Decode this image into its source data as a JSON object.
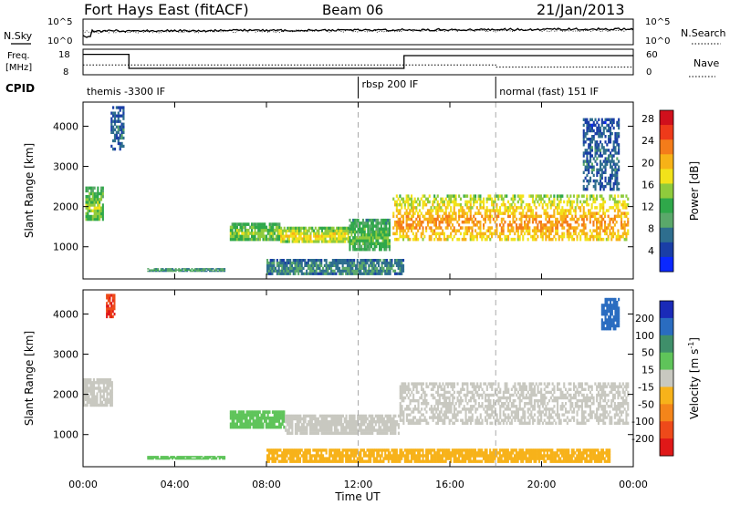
{
  "header": {
    "station": "Fort Hays East (fitACF)",
    "beam": "Beam 06",
    "date": "21/Jan/2013"
  },
  "noise_panel": {
    "left_label": "N.Sky",
    "right_label": "N.Search",
    "ticks_left": [
      "10^5",
      "10^0"
    ],
    "ticks_right": [
      "10^5",
      "10^0"
    ]
  },
  "freq_panel": {
    "left_label_line1": "Freq.",
    "left_label_line2": "[MHz]",
    "right_label": "Nave",
    "ticks_left": [
      "18",
      "8"
    ],
    "ticks_right": [
      "60",
      "0"
    ],
    "freq_steps": [
      {
        "t0": 0.0,
        "t1": 2.0,
        "mhz": 16.0
      },
      {
        "t0": 2.0,
        "t1": 14.0,
        "mhz": 10.5
      },
      {
        "t0": 14.0,
        "t1": 24.0,
        "mhz": 15.5
      }
    ],
    "nave_steps": [
      {
        "t0": 0.0,
        "t1": 18.0,
        "n": 23
      },
      {
        "t0": 18.0,
        "t1": 24.0,
        "n": 18
      }
    ]
  },
  "cpid": {
    "label": "CPID",
    "segments": [
      {
        "name": "themis -3300 IF",
        "start": 0.0
      },
      {
        "name": "rbsp 200 IF",
        "start": 12.0
      },
      {
        "name": "normal (fast) 151 IF",
        "start": 18.0
      }
    ]
  },
  "chart_data": [
    {
      "type": "heatmap",
      "title": "Power",
      "ylabel": "Slant Range [km]",
      "xlabel": "Time UT",
      "xlim": [
        0,
        24
      ],
      "ylim": [
        200,
        4600
      ],
      "x_ticks": [
        "00:00",
        "04:00",
        "08:00",
        "12:00",
        "16:00",
        "20:00",
        "00:00"
      ],
      "y_ticks": [
        1000,
        2000,
        3000,
        4000
      ],
      "colorbar": {
        "label": "Power [dB]",
        "ticks": [
          "4",
          "8",
          "12",
          "16",
          "20",
          "24",
          "28"
        ],
        "colors": [
          "#0a28ff",
          "#1a3ea6",
          "#2e6e8e",
          "#5aa86a",
          "#2fa84a",
          "#8fcb3c",
          "#f2e21a",
          "#f7b217",
          "#f47c1a",
          "#ee3a1a",
          "#d0101c"
        ]
      },
      "regions": [
        {
          "t0": 0.1,
          "t1": 0.9,
          "r0": 1650,
          "r1": 2500,
          "level": 0.45
        },
        {
          "t0": 1.2,
          "t1": 1.8,
          "r0": 3400,
          "r1": 4500,
          "level": 0.2
        },
        {
          "t0": 6.4,
          "t1": 8.6,
          "r0": 1150,
          "r1": 1600,
          "level": 0.45
        },
        {
          "t0": 8.6,
          "t1": 11.6,
          "r0": 1100,
          "r1": 1500,
          "level": 0.55
        },
        {
          "t0": 11.6,
          "t1": 13.4,
          "r0": 900,
          "r1": 1700,
          "level": 0.4
        },
        {
          "t0": 13.5,
          "t1": 23.8,
          "r0": 1150,
          "r1": 2300,
          "level": 0.65
        },
        {
          "t0": 21.8,
          "t1": 23.4,
          "r0": 2400,
          "r1": 4200,
          "level": 0.2
        },
        {
          "t0": 2.8,
          "t1": 6.2,
          "r0": 380,
          "r1": 470,
          "level": 0.3
        },
        {
          "t0": 8.0,
          "t1": 14.0,
          "r0": 300,
          "r1": 700,
          "level": 0.25
        }
      ]
    },
    {
      "type": "heatmap",
      "title": "Velocity",
      "ylabel": "Slant Range [km]",
      "xlabel": "Time UT",
      "xlim": [
        0,
        24
      ],
      "ylim": [
        200,
        4600
      ],
      "x_ticks": [
        "00:00",
        "04:00",
        "08:00",
        "12:00",
        "16:00",
        "20:00",
        "00:00"
      ],
      "y_ticks": [
        1000,
        2000,
        3000,
        4000
      ],
      "colorbar": {
        "label": "Velocity [m s",
        "label_exp": "-1",
        "label_end": "]",
        "ticks": [
          "200",
          "100",
          "50",
          "15",
          "-15",
          "-50",
          "-100",
          "-200"
        ],
        "colors": [
          "#1a2ab8",
          "#2a6cc0",
          "#3f8f6a",
          "#5fc45a",
          "#c8c8c0",
          "#f7b21a",
          "#f4851a",
          "#ee4a1a",
          "#e01818"
        ]
      },
      "regions": [
        {
          "t0": 0.0,
          "t1": 1.3,
          "r0": 1700,
          "r1": 2400,
          "v": 0
        },
        {
          "t0": 1.0,
          "t1": 1.4,
          "r0": 3900,
          "r1": 4500,
          "v": -200
        },
        {
          "t0": 6.4,
          "t1": 8.8,
          "r0": 1150,
          "r1": 1600,
          "v": 40
        },
        {
          "t0": 8.8,
          "t1": 13.8,
          "r0": 1000,
          "r1": 1500,
          "v": 0
        },
        {
          "t0": 13.8,
          "t1": 23.8,
          "r0": 1250,
          "r1": 2300,
          "v": 0
        },
        {
          "t0": 22.6,
          "t1": 23.4,
          "r0": 3600,
          "r1": 4400,
          "v": 120
        },
        {
          "t0": 2.8,
          "t1": 6.2,
          "r0": 380,
          "r1": 470,
          "v": 40
        },
        {
          "t0": 8.0,
          "t1": 23.0,
          "r0": 300,
          "r1": 650,
          "v": -40
        }
      ]
    }
  ]
}
